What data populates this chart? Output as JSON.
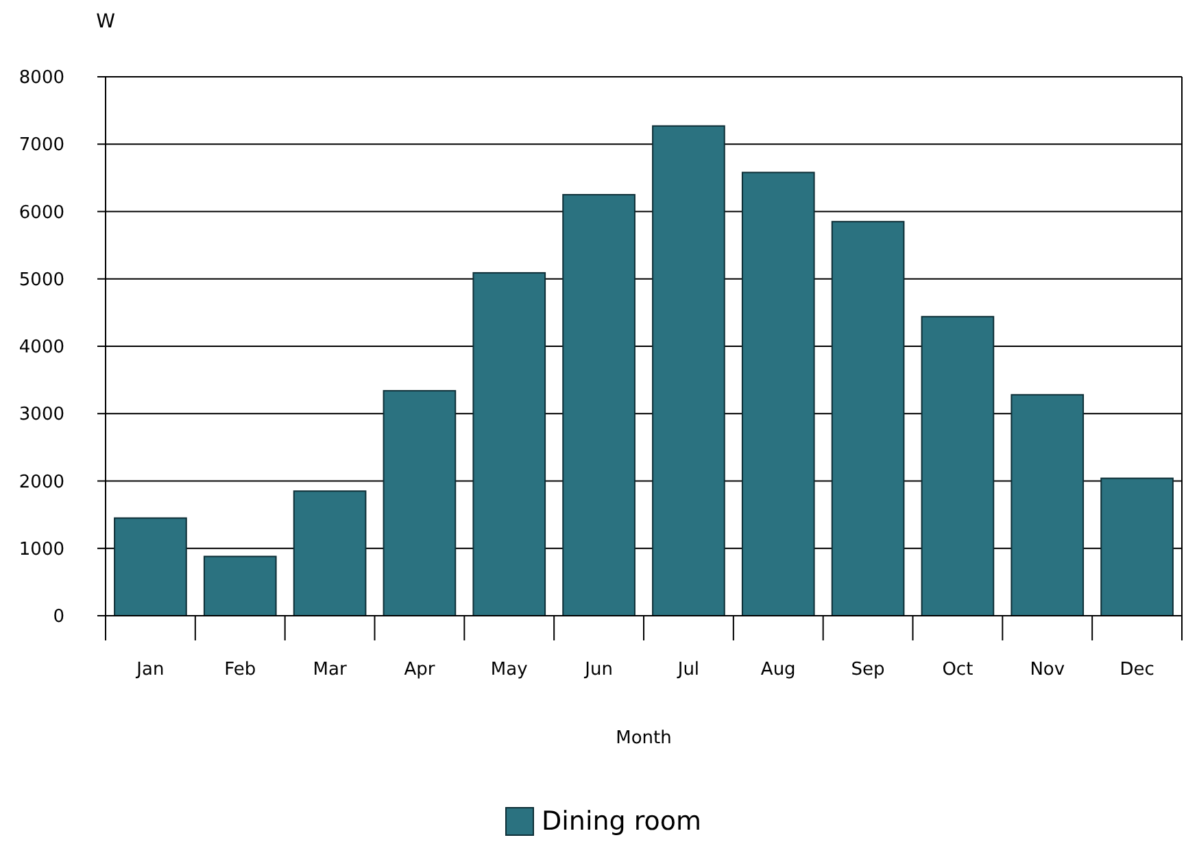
{
  "chart_data": {
    "type": "bar",
    "ylabel": "W",
    "xlabel": "Month",
    "categories": [
      "Jan",
      "Feb",
      "Mar",
      "Apr",
      "May",
      "Jun",
      "Jul",
      "Aug",
      "Sep",
      "Oct",
      "Nov",
      "Dec"
    ],
    "series": [
      {
        "name": "Dining room",
        "color": "#2b7280",
        "values": [
          1450,
          880,
          1850,
          3340,
          5090,
          6250,
          7270,
          6580,
          5850,
          4440,
          3280,
          2040
        ]
      }
    ],
    "ylim": [
      0,
      8000
    ],
    "yticks": [
      0,
      1000,
      2000,
      3000,
      4000,
      5000,
      6000,
      7000,
      8000
    ],
    "grid": "y",
    "legend": "bottom"
  }
}
